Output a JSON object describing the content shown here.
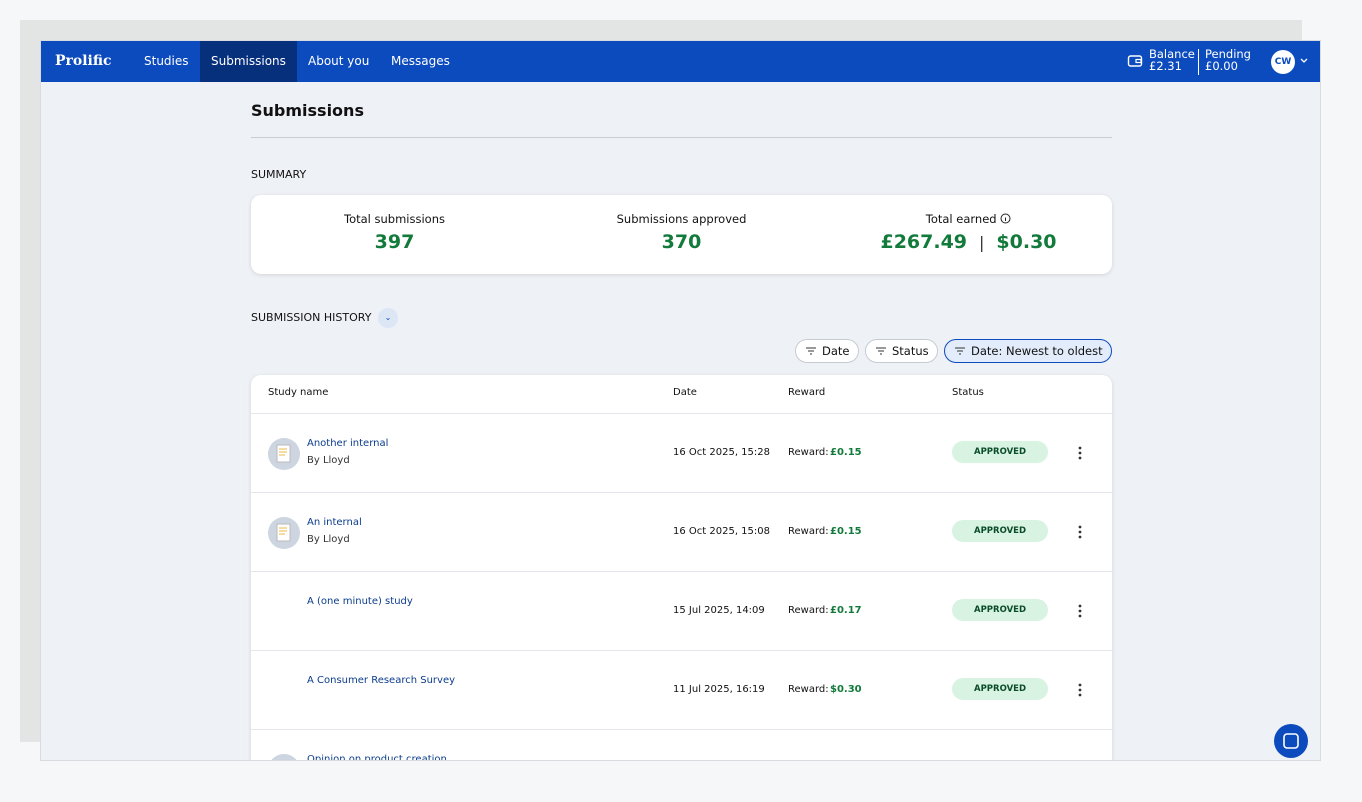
{
  "nav": {
    "brand": "Prolific",
    "items": [
      "Studies",
      "Submissions",
      "About you",
      "Messages"
    ],
    "active": 1,
    "balance_label": "Balance",
    "balance": "£2.31",
    "pending_label": "Pending",
    "pending": "£0.00",
    "avatar": "CW"
  },
  "page": {
    "title": "Submissions",
    "summary_heading": "SUMMARY",
    "stats": [
      {
        "label": "Total submissions",
        "value": "397"
      },
      {
        "label": "Submissions approved",
        "value": "370"
      },
      {
        "label": "Total earned",
        "values": [
          "£267.49",
          "$0.30"
        ]
      }
    ],
    "history_heading": "SUBMISSION HISTORY",
    "filters": [
      "Date",
      "Status",
      "Date: Newest to oldest"
    ]
  },
  "table": {
    "columns": [
      "Study name",
      "Date",
      "Reward",
      "Status"
    ],
    "rows": [
      {
        "icon": true,
        "name": "Another internal",
        "by": "By Lloyd",
        "date": "16 Oct 2025, 15:28",
        "reward_prefix": "Reward:",
        "reward": "£0.15",
        "status": "APPROVED"
      },
      {
        "icon": true,
        "name": "An internal",
        "by": "By Lloyd",
        "date": "16 Oct 2025, 15:08",
        "reward_prefix": "Reward:",
        "reward": "£0.15",
        "status": "APPROVED"
      },
      {
        "icon": false,
        "name": "A (one minute) study",
        "date": "15 Jul 2025, 14:09",
        "reward_prefix": "Reward:",
        "reward": "£0.17",
        "status": "APPROVED"
      },
      {
        "icon": false,
        "name": "A Consumer Research Survey",
        "date": "11 Jul 2025, 16:19",
        "reward_prefix": "Reward:",
        "reward": "$0.30",
        "status": "APPROVED"
      },
      {
        "icon": true,
        "name": "Opinion on product creation"
      }
    ]
  }
}
